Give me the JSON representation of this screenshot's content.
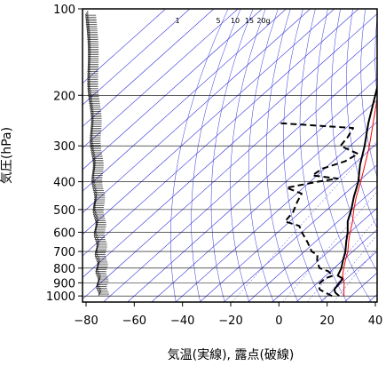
{
  "chart_data": {
    "type": "line",
    "title": "",
    "xlabel": "気温(実線), 露点(破線)",
    "ylabel": "気圧(hPa)",
    "x_unit": "°C",
    "xlim": [
      -80,
      40
    ],
    "ylim": [
      1050,
      100
    ],
    "y_scale": "log",
    "skew_degrees_per_decade": 133,
    "x_ticks": [
      -80,
      -60,
      -40,
      -20,
      0,
      20,
      40
    ],
    "x_tick_labels": [
      "−80",
      "−60",
      "−40",
      "−20",
      "0",
      "20",
      "40"
    ],
    "y_ticks": [
      100,
      200,
      300,
      400,
      500,
      600,
      700,
      800,
      900,
      1000
    ],
    "y_tick_labels": [
      "100",
      "200",
      "300",
      "400",
      "500",
      "600",
      "700",
      "800",
      "900",
      "1000"
    ],
    "grid": true,
    "mixing_ratio_labels": [
      "1",
      "5",
      "10",
      "15",
      "20g"
    ],
    "series": [
      {
        "role": "temperature",
        "style": "solid",
        "color": "#000000",
        "points": [
          [
            1000,
            25
          ],
          [
            975,
            22
          ],
          [
            950,
            20
          ],
          [
            925,
            19.5
          ],
          [
            900,
            19
          ],
          [
            870,
            18.5
          ],
          [
            850,
            15
          ],
          [
            800,
            13
          ],
          [
            750,
            10
          ],
          [
            700,
            7
          ],
          [
            650,
            3
          ],
          [
            600,
            -1
          ],
          [
            550,
            -6
          ],
          [
            500,
            -10
          ],
          [
            450,
            -15
          ],
          [
            400,
            -20
          ],
          [
            350,
            -27
          ],
          [
            300,
            -34
          ],
          [
            250,
            -43
          ],
          [
            200,
            -53
          ],
          [
            175,
            -59
          ],
          [
            150,
            -66
          ],
          [
            125,
            -75
          ],
          [
            110,
            -79.5
          ],
          [
            100,
            -80
          ]
        ]
      },
      {
        "role": "dewpoint",
        "style": "dashed",
        "color": "#000000",
        "points": [
          [
            1000,
            22
          ],
          [
            975,
            18
          ],
          [
            950,
            14
          ],
          [
            925,
            12
          ],
          [
            900,
            11
          ],
          [
            870,
            11
          ],
          [
            850,
            13
          ],
          [
            820,
            9
          ],
          [
            800,
            4
          ],
          [
            760,
            0
          ],
          [
            720,
            -3
          ],
          [
            700,
            -7
          ],
          [
            650,
            -13
          ],
          [
            600,
            -20
          ],
          [
            570,
            -24
          ],
          [
            550,
            -32
          ],
          [
            510,
            -33
          ],
          [
            470,
            -36
          ],
          [
            440,
            -38
          ],
          [
            420,
            -47
          ],
          [
            400,
            -37
          ],
          [
            390,
            -30
          ],
          [
            380,
            -42
          ],
          [
            360,
            -41
          ],
          [
            340,
            -35
          ],
          [
            320,
            -33
          ],
          [
            300,
            -44
          ],
          [
            280,
            -45
          ],
          [
            260,
            -47
          ],
          [
            250,
            -80
          ]
        ]
      },
      {
        "role": "parcel",
        "style": "solid",
        "color": "#ff0000",
        "points": [
          [
            1000,
            27
          ],
          [
            950,
            24
          ],
          [
            900,
            21
          ],
          [
            850,
            17
          ],
          [
            800,
            14
          ],
          [
            750,
            11
          ],
          [
            700,
            8
          ],
          [
            650,
            4
          ],
          [
            600,
            0
          ],
          [
            550,
            -4
          ],
          [
            500,
            -9
          ],
          [
            450,
            -14
          ],
          [
            400,
            -19
          ],
          [
            350,
            -25
          ],
          [
            300,
            -32
          ],
          [
            250,
            -41
          ],
          [
            200,
            -52
          ],
          [
            175,
            -59
          ],
          [
            150,
            -66
          ],
          [
            125,
            -73
          ],
          [
            120,
            -80
          ]
        ]
      }
    ],
    "wind_barbs_note": "wind barbs plotted along the left margin from 1000 to 100 hPa"
  }
}
